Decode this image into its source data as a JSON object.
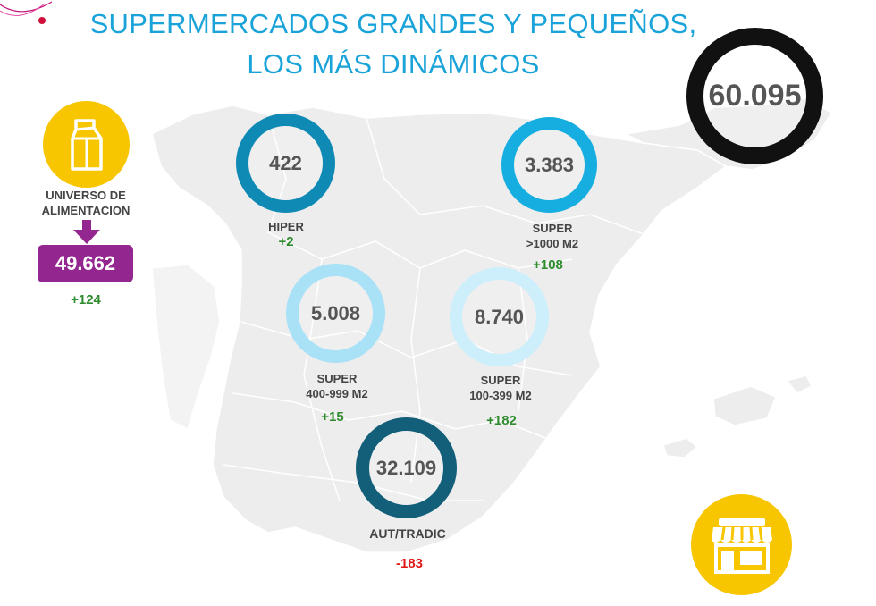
{
  "title": {
    "line1": "SUPERMERCADOS GRANDES Y PEQUEÑOS,",
    "line2": "LOS MÁS DINÁMICOS"
  },
  "total": {
    "value": "60.095"
  },
  "universo": {
    "label_line1": "UNIVERSO DE",
    "label_line2": "ALIMENTACION",
    "value": "49.662",
    "delta": "+124"
  },
  "segments": [
    {
      "id": "hiper",
      "value": "422",
      "label_line1": "HIPER",
      "label_line2": "",
      "delta": "+2",
      "ring_color": "#0e8ab5"
    },
    {
      "id": "super_1000",
      "value": "3.383",
      "label_line1": "SUPER",
      "label_line2": ">1000 M2",
      "delta": "+108",
      "ring_color": "#16aee0"
    },
    {
      "id": "super_400_999",
      "value": "5.008",
      "label_line1": "SUPER",
      "label_line2": "400-999 M2",
      "delta": "+15",
      "ring_color": "#a9e1f7"
    },
    {
      "id": "super_100_399",
      "value": "8.740",
      "label_line1": "SUPER",
      "label_line2": "100-399 M2",
      "delta": "+182",
      "ring_color": "#cdeefb"
    },
    {
      "id": "aut_tradic",
      "value": "32.109",
      "label_line1": "AUT/TRADIC",
      "label_line2": "",
      "delta": "-183",
      "ring_color": "#135f7a"
    }
  ],
  "icons": {
    "milk": "milk-carton-icon",
    "store": "storefront-icon",
    "arrow": "arrow-down-icon"
  },
  "colors": {
    "title": "#1aa3d9",
    "positive": "#2e8b2e",
    "negative": "#e01818",
    "purple": "#93278f",
    "yellow": "#f7c600",
    "total_ring": "#111111"
  }
}
